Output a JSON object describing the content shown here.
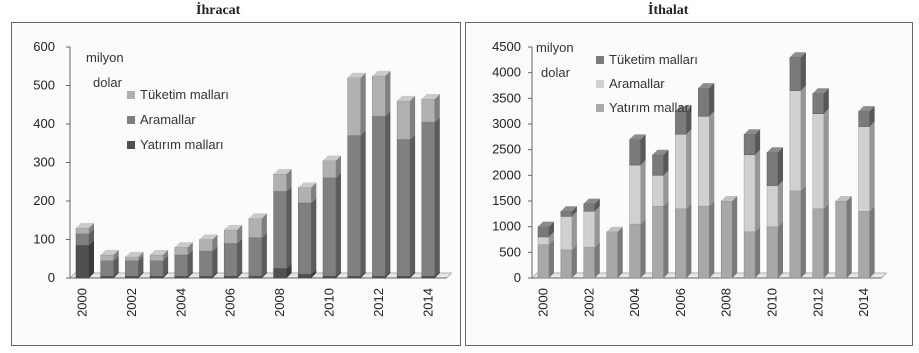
{
  "panels": [
    {
      "title": "İhracat",
      "unit_line1": "milyon",
      "unit_line2": "dolar"
    },
    {
      "title": "İthalat",
      "unit_line1": "milyon",
      "unit_line2": "dolar"
    }
  ],
  "chart_data": [
    {
      "type": "bar",
      "stacked": true,
      "title": "İhracat",
      "unit": "milyon dolar",
      "categories": [
        "2000",
        "2001",
        "2002",
        "2003",
        "2004",
        "2005",
        "2006",
        "2007",
        "2008",
        "2009",
        "2010",
        "2011",
        "2012",
        "2013",
        "2014"
      ],
      "x_tick_labels": [
        "2000",
        "2002",
        "2004",
        "2006",
        "2008",
        "2010",
        "2012",
        "2014"
      ],
      "y_ticks": [
        0,
        100,
        200,
        300,
        400,
        500,
        600
      ],
      "ylim": [
        0,
        600
      ],
      "legend": [
        "Tüketim malları",
        "Aramallar",
        "Yatırım malları"
      ],
      "legend_placement": "upper-left",
      "series": [
        {
          "name": "Yatırım malları",
          "color": "#505050",
          "values": [
            85,
            5,
            5,
            5,
            5,
            5,
            5,
            5,
            25,
            10,
            5,
            5,
            5,
            5,
            5
          ]
        },
        {
          "name": "Aramallar",
          "color": "#808080",
          "values": [
            30,
            40,
            40,
            40,
            55,
            65,
            85,
            100,
            200,
            185,
            255,
            365,
            415,
            355,
            400
          ]
        },
        {
          "name": "Tüketim malları",
          "color": "#b0b0b0",
          "values": [
            15,
            15,
            10,
            15,
            20,
            30,
            35,
            50,
            45,
            40,
            45,
            150,
            105,
            100,
            60
          ]
        }
      ],
      "totals": [
        130,
        60,
        55,
        60,
        80,
        100,
        125,
        155,
        270,
        235,
        305,
        520,
        525,
        460,
        465
      ]
    },
    {
      "type": "bar",
      "stacked": true,
      "title": "İthalat",
      "unit": "milyon dolar",
      "categories": [
        "2000",
        "2001",
        "2002",
        "2003",
        "2004",
        "2005",
        "2006",
        "2007",
        "2008",
        "2009",
        "2010",
        "2011",
        "2012",
        "2013",
        "2014"
      ],
      "x_tick_labels": [
        "2000",
        "2002",
        "2004",
        "2006",
        "2008",
        "2010",
        "2012",
        "2014"
      ],
      "y_ticks": [
        0,
        500,
        1000,
        1500,
        2000,
        2500,
        3000,
        3500,
        4000,
        4500
      ],
      "ylim": [
        0,
        4500
      ],
      "legend": [
        "Tüketim malları",
        "Aramallar",
        "Yatırım malları"
      ],
      "legend_placement": "upper-left",
      "series": [
        {
          "name": "Yatırım malları",
          "color": "#a8a8a8",
          "values": [
            650,
            550,
            600,
            900,
            1050,
            1400,
            1350,
            1400,
            1500,
            900,
            1000,
            1700,
            1350,
            1500,
            1300
          ]
        },
        {
          "name": "Aramallar",
          "color": "#d0d0d0",
          "values": [
            150,
            650,
            700,
            0,
            1150,
            600,
            1450,
            1750,
            0,
            1500,
            800,
            1950,
            1850,
            0,
            1650
          ]
        },
        {
          "name": "Tüketim malları",
          "color": "#7a7a7a",
          "values": [
            200,
            100,
            150,
            0,
            500,
            400,
            450,
            550,
            0,
            400,
            650,
            650,
            400,
            0,
            300
          ]
        }
      ],
      "totals": [
        1000,
        1300,
        1450,
        900,
        2700,
        2400,
        3250,
        3700,
        1500,
        2800,
        2450,
        4300,
        3600,
        1500,
        3250
      ]
    }
  ]
}
